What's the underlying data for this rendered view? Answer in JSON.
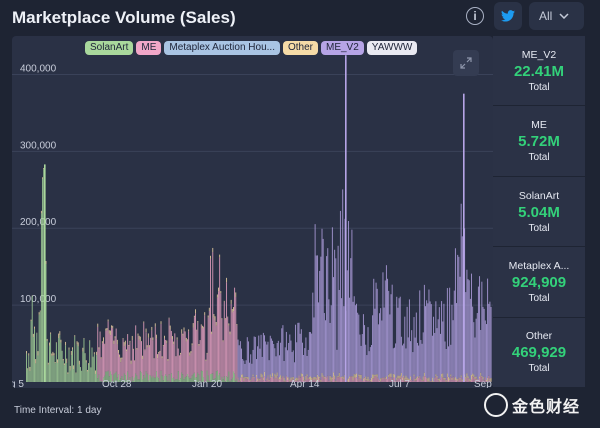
{
  "header": {
    "title": "Marketplace Volume (Sales)",
    "info_glyph": "i",
    "twitter_icon": "twitter-icon",
    "range_select": {
      "value": "All",
      "icon": "chevron-down-icon"
    }
  },
  "chart_data": {
    "type": "bar",
    "stacked": true,
    "title": "",
    "xlabel": "",
    "ylabel": "",
    "ylim": [
      0,
      450000
    ],
    "yticks": [
      "100,000",
      "200,000",
      "300,000",
      "400,000"
    ],
    "ytick_values": [
      100000,
      200000,
      300000,
      400000
    ],
    "xticks": [
      "g 5",
      "Oct 28",
      "Jan 20",
      "Apr 14",
      "Jul 7",
      "Sep"
    ],
    "grid": true,
    "legend_position": "top",
    "series": [
      {
        "name": "SolanArt",
        "color": "#a9d89c"
      },
      {
        "name": "ME",
        "color": "#f1a7c8"
      },
      {
        "name": "Metaplex Auction Hou...",
        "color": "#a9c4e3"
      },
      {
        "name": "Other",
        "color": "#f6dba7"
      },
      {
        "name": "ME_V2",
        "color": "#b6a4e6"
      },
      {
        "name": "YAWWW",
        "color": "#e9e9f1"
      }
    ],
    "peaks": [
      {
        "label": "SolanArt peak",
        "value": 283000
      },
      {
        "label": "ME_V2 peak",
        "value": 425000
      },
      {
        "label": "ME_V2 late peak",
        "value": 375000
      }
    ]
  },
  "footer": {
    "time_interval": "Time Interval: 1 day"
  },
  "stats": [
    {
      "name": "ME_V2",
      "value": "22.41M",
      "caption": "Total"
    },
    {
      "name": "ME",
      "value": "5.72M",
      "caption": "Total"
    },
    {
      "name": "SolanArt",
      "value": "5.04M",
      "caption": "Total"
    },
    {
      "name": "Metaplex A...",
      "value": "924,909",
      "caption": "Total"
    },
    {
      "name": "Other",
      "value": "469,929",
      "caption": "Total"
    }
  ],
  "watermark": {
    "text": "金色财经"
  },
  "colors": {
    "accent": "#33d17a",
    "background": "#1e2433",
    "panel": "#2a3145"
  }
}
